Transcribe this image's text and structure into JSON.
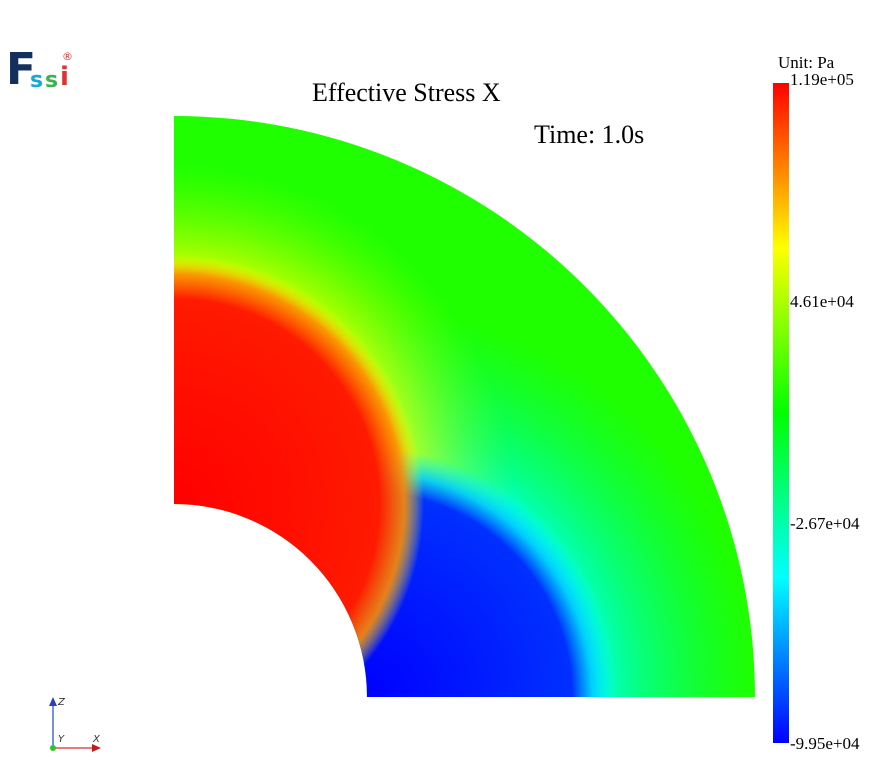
{
  "logo": {
    "letters": [
      "F",
      "s",
      "s",
      "i"
    ],
    "registered": "®"
  },
  "plot": {
    "title": "Effective Stress X",
    "time_label": "Time: 1.0s"
  },
  "colorbar": {
    "unit_label": "Unit:  Pa",
    "max": "1.19e+05",
    "tick_2": "4.61e+04",
    "tick_3": "-2.67e+04",
    "min": "-9.95e+04",
    "colors": [
      "#ff0000",
      "#ffff00",
      "#00ff00",
      "#00ffff",
      "#0000ff"
    ]
  },
  "axes_triad": {
    "z": "Z",
    "y": "Y",
    "x": "X"
  }
}
